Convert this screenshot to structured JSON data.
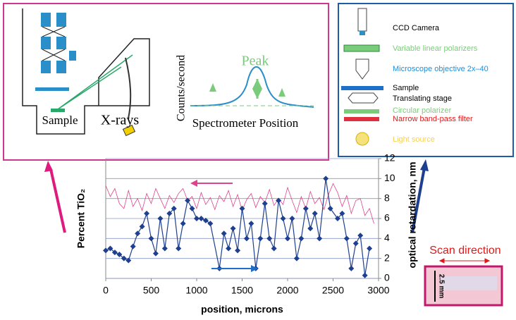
{
  "chart_data": {
    "type": "line",
    "x_label": "position, microns",
    "y_label": "Percent TiO₂",
    "y2_label": "optical retardation, nm",
    "xlim": [
      0,
      3000
    ],
    "xticks": [
      0,
      500,
      1000,
      1500,
      2000,
      2500,
      3000
    ],
    "y2lim": [
      0,
      12
    ],
    "y2ticks": [
      0,
      2,
      4,
      6,
      8,
      10,
      12
    ],
    "grid": true,
    "series": [
      {
        "color": "#1f3f8f",
        "axis": "y2",
        "marker": "diamond",
        "x": [
          0,
          50,
          100,
          150,
          200,
          250,
          300,
          350,
          400,
          450,
          500,
          550,
          600,
          650,
          700,
          750,
          800,
          850,
          900,
          950,
          1000,
          1050,
          1100,
          1150,
          1250,
          1300,
          1350,
          1400,
          1450,
          1500,
          1550,
          1600,
          1650,
          1700,
          1750,
          1800,
          1850,
          1900,
          1950,
          2000,
          2050,
          2100,
          2150,
          2200,
          2250,
          2300,
          2350,
          2420,
          2470,
          2550,
          2600,
          2650,
          2700,
          2750,
          2800,
          2850,
          2900
        ],
        "values": [
          2.8,
          3,
          2.6,
          2.4,
          2,
          1.8,
          3.2,
          4.5,
          5.2,
          6.5,
          4,
          2.5,
          6,
          3,
          6.5,
          7,
          3,
          5.5,
          7.8,
          7,
          6,
          6,
          5.8,
          5.5,
          1,
          4.5,
          3,
          5,
          2.8,
          7,
          4,
          5.5,
          1,
          4,
          7.5,
          4,
          3,
          7.8,
          6,
          4,
          6,
          2,
          4,
          7,
          5,
          6.5,
          4,
          10,
          7,
          6,
          6.5,
          4,
          1,
          3.5,
          4.3,
          0.3,
          3
        ]
      },
      {
        "color": "#e0428c",
        "axis": "y2",
        "marker": "none",
        "x": [
          0,
          50,
          100,
          150,
          200,
          250,
          300,
          350,
          400,
          450,
          500,
          550,
          600,
          650,
          700,
          750,
          800,
          850,
          900,
          950,
          1000,
          1050,
          1100,
          1150,
          1200,
          1250,
          1300,
          1350,
          1400,
          1450,
          1500,
          1550,
          1600,
          1650,
          1700,
          1750,
          1800,
          1850,
          1900,
          1950,
          2000,
          2050,
          2100,
          2150,
          2200,
          2250,
          2300,
          2350,
          2400,
          2450,
          2500,
          2550,
          2600,
          2650,
          2700,
          2750,
          2800,
          2850,
          2900,
          2950
        ],
        "values": [
          9.3,
          8.2,
          9,
          7.5,
          7,
          8.8,
          7.2,
          8,
          6.8,
          8.5,
          7.5,
          9,
          8,
          7,
          8.3,
          7.6,
          8.5,
          9,
          7.8,
          8.2,
          7,
          8.6,
          7.4,
          8.1,
          6.9,
          8.3,
          7.7,
          8.8,
          7.2,
          8.4,
          6.8,
          7.9,
          8.5,
          7.1,
          8.2,
          7.6,
          8.9,
          7.3,
          8,
          7.4,
          9.1,
          7.8,
          6.6,
          8.2,
          7,
          8.7,
          7.5,
          8.1,
          6.9,
          8.4,
          9.5,
          8.6,
          7.2,
          8.3,
          6.5,
          7.8,
          8,
          6.3,
          7,
          5.5
        ]
      }
    ]
  },
  "left_inset": {
    "sample": "Sample",
    "xrays": "X-rays",
    "y_label": "Counts/second",
    "peak": "Peak",
    "x_label": "Spectrometer Position"
  },
  "right_inset": {
    "items": [
      "CCD Camera",
      "Variable linear polarizers",
      "Microscope objective 2x–40",
      "Sample",
      "Translating stage",
      "Circular polarizer",
      "Narrow band-pass filter",
      "Light source"
    ]
  },
  "photo": {
    "scan": "Scan direction",
    "size": "2.5 mm"
  }
}
